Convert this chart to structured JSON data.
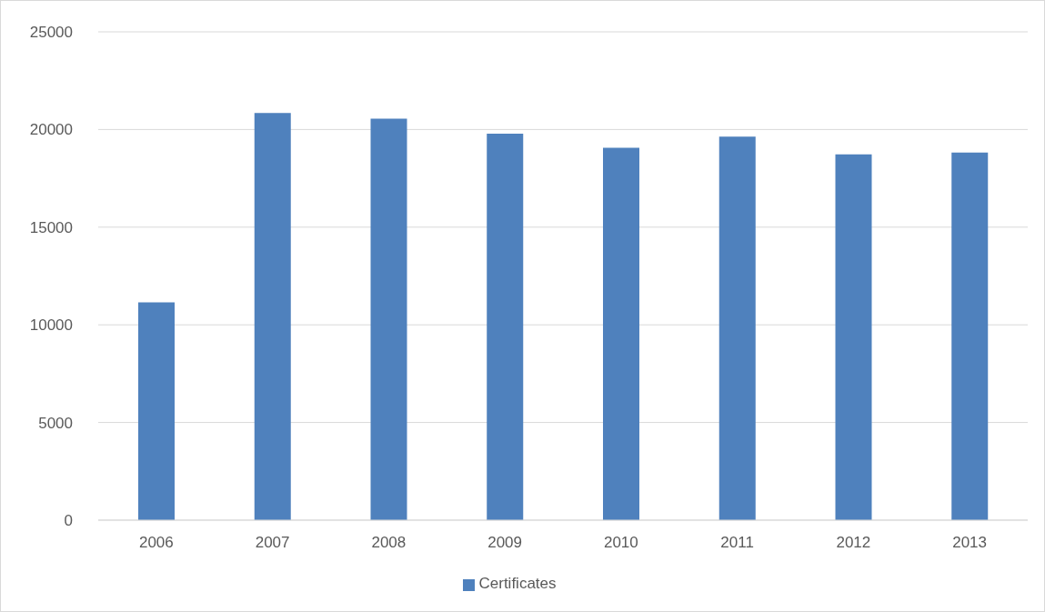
{
  "chart_data": {
    "type": "bar",
    "categories": [
      "2006",
      "2007",
      "2008",
      "2009",
      "2010",
      "2011",
      "2012",
      "2013"
    ],
    "series": [
      {
        "name": "Certificates",
        "color": "#4f81bd",
        "values": [
          11150,
          20850,
          20550,
          19790,
          19060,
          19640,
          18730,
          18820
        ]
      }
    ],
    "ylim": [
      0,
      25000
    ],
    "yticks": [
      0,
      5000,
      10000,
      15000,
      20000,
      25000
    ],
    "grid": "y",
    "legend": "bottom"
  }
}
